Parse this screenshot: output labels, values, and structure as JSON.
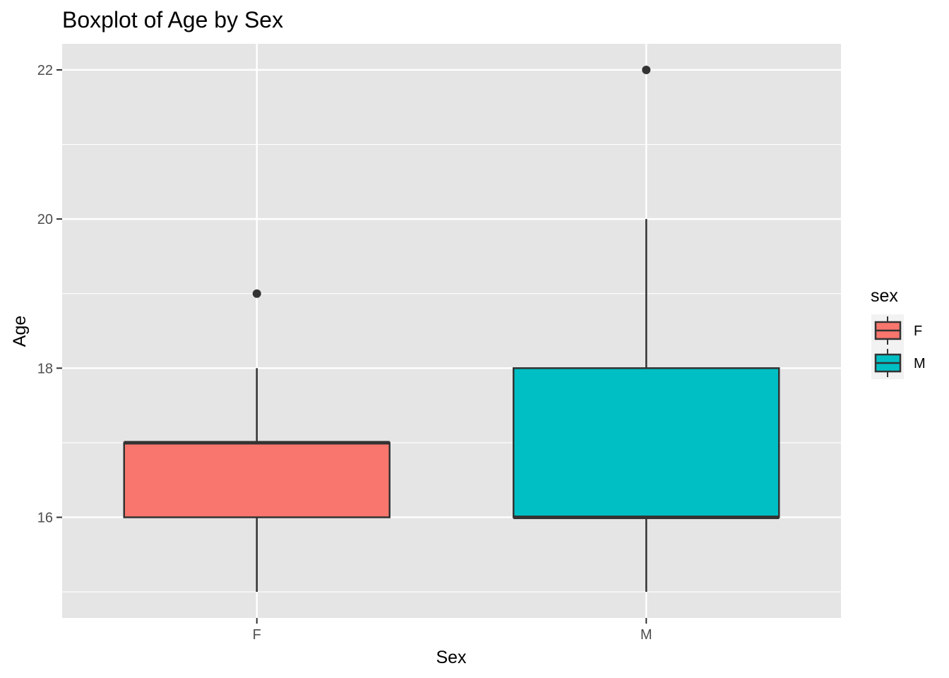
{
  "chart_data": {
    "type": "boxplot",
    "title": "Boxplot of Age by Sex",
    "xlabel": "Sex",
    "ylabel": "Age",
    "categories": [
      "F",
      "M"
    ],
    "ylim": [
      14.65,
      22.35
    ],
    "y_ticks": [
      16,
      18,
      20,
      22
    ],
    "y_tick_labels": [
      "16",
      "18",
      "20",
      "22"
    ],
    "grid": true,
    "legend": {
      "title": "sex",
      "position": "right",
      "entries": [
        {
          "label": "F",
          "color": "#F8766D"
        },
        {
          "label": "M",
          "color": "#00BFC4"
        }
      ]
    },
    "series": [
      {
        "name": "F",
        "color": "#F8766D",
        "whisker_low": 15,
        "q1": 16,
        "median": 17,
        "q3": 17,
        "whisker_high": 18,
        "outliers": [
          19
        ]
      },
      {
        "name": "M",
        "color": "#00BFC4",
        "whisker_low": 15,
        "q1": 16,
        "median": 16,
        "q3": 18,
        "whisker_high": 20,
        "outliers": [
          22
        ]
      }
    ],
    "colors": {
      "panel_background": "#E5E5E5",
      "grid": "#FFFFFF",
      "box_outline": "#333333",
      "tick_text": "#4D4D4D"
    }
  }
}
